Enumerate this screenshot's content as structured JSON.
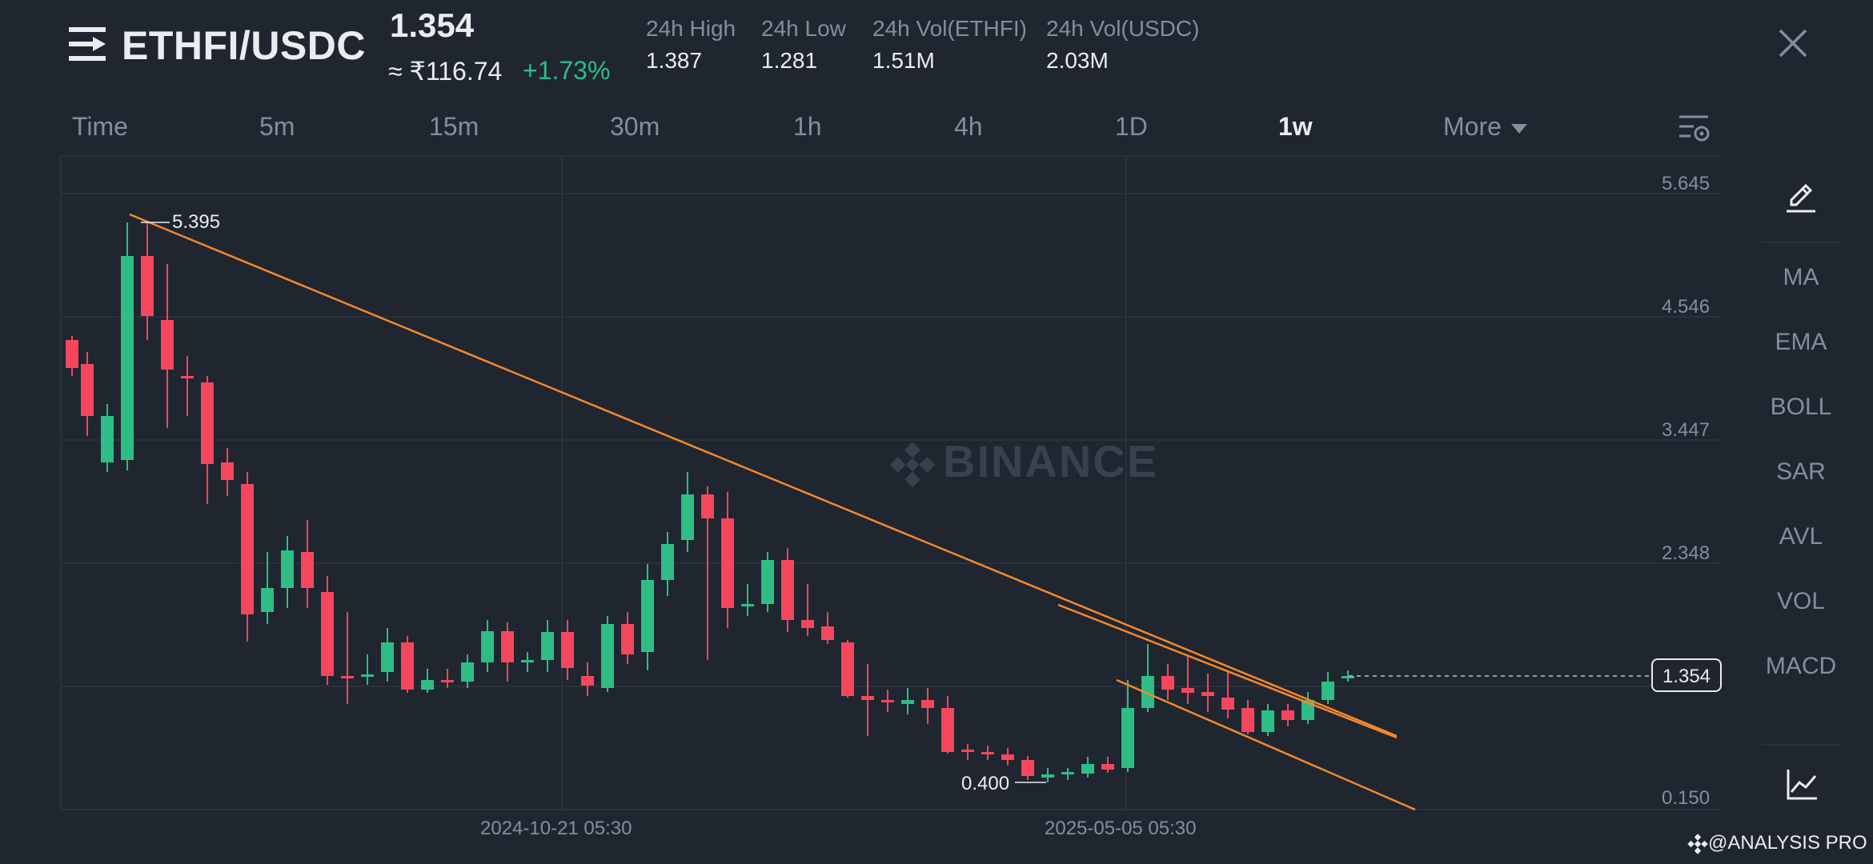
{
  "header": {
    "pair": "ETHFI/USDC",
    "price": "1.354",
    "approx_inr": "≈ ₹116.74",
    "change": "+1.73%",
    "stats": [
      {
        "label": "24h High",
        "value": "1.387"
      },
      {
        "label": "24h Low",
        "value": "1.281"
      },
      {
        "label": "24h Vol(ETHFI)",
        "value": "1.51M"
      },
      {
        "label": "24h Vol(USDC)",
        "value": "2.03M"
      }
    ]
  },
  "tabs": [
    "Time",
    "5m",
    "15m",
    "30m",
    "1h",
    "4h",
    "1D",
    "1w",
    "More"
  ],
  "active_tab": "1w",
  "toolbar": [
    "MA",
    "EMA",
    "BOLL",
    "SAR",
    "AVL",
    "VOL",
    "MACD"
  ],
  "chart_data": {
    "type": "candlestick",
    "y_axis_labels": [
      "5.645",
      "4.546",
      "3.447",
      "2.348",
      "1.354",
      "0.150"
    ],
    "x_axis_labels": [
      "2024-10-21 05:30",
      "2025-05-05 05:30"
    ],
    "annotations": {
      "high": "5.395",
      "low": "0.400"
    },
    "watermark": "BINANCE",
    "current_price": 1.354,
    "colors": {
      "up": "#2ebd85",
      "down": "#f6465d",
      "trendline": "#f7882b"
    }
  },
  "credit": "@ANALYSIS PRO"
}
